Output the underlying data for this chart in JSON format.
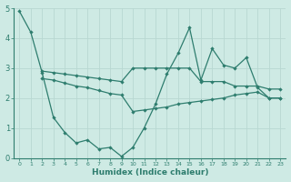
{
  "xlabel": "Humidex (Indice chaleur)",
  "x_values": [
    0,
    1,
    2,
    3,
    4,
    5,
    6,
    7,
    8,
    9,
    10,
    11,
    12,
    13,
    14,
    15,
    16,
    17,
    18,
    19,
    20,
    21,
    22,
    23
  ],
  "line_jagged": [
    4.9,
    4.2,
    2.85,
    1.35,
    0.85,
    0.5,
    0.6,
    0.3,
    0.35,
    0.05,
    0.35,
    1.0,
    1.8,
    2.8,
    3.5,
    4.35,
    2.6,
    3.65,
    3.1,
    3.0,
    3.35,
    2.35,
    2.0,
    2.0
  ],
  "line_upper": [
    null,
    null,
    2.9,
    2.85,
    2.8,
    2.75,
    2.7,
    2.65,
    2.6,
    2.55,
    3.0,
    3.0,
    3.0,
    3.0,
    3.0,
    3.0,
    2.55,
    2.55,
    2.55,
    2.4,
    2.4,
    2.4,
    2.3,
    2.3
  ],
  "line_lower": [
    null,
    null,
    2.65,
    2.6,
    2.5,
    2.4,
    2.35,
    2.25,
    2.15,
    2.1,
    1.55,
    1.6,
    1.65,
    1.7,
    1.8,
    1.85,
    1.9,
    1.95,
    2.0,
    2.1,
    2.15,
    2.2,
    2.0,
    2.0
  ],
  "line_color": "#2e7d6e",
  "bg_color": "#ceeae4",
  "grid_color": "#b8d8d2",
  "ylim": [
    0,
    5
  ],
  "xlim": [
    -0.5,
    23.5
  ],
  "yticks": [
    0,
    1,
    2,
    3,
    4,
    5
  ],
  "xticks": [
    0,
    1,
    2,
    3,
    4,
    5,
    6,
    7,
    8,
    9,
    10,
    11,
    12,
    13,
    14,
    15,
    16,
    17,
    18,
    19,
    20,
    21,
    22,
    23
  ]
}
